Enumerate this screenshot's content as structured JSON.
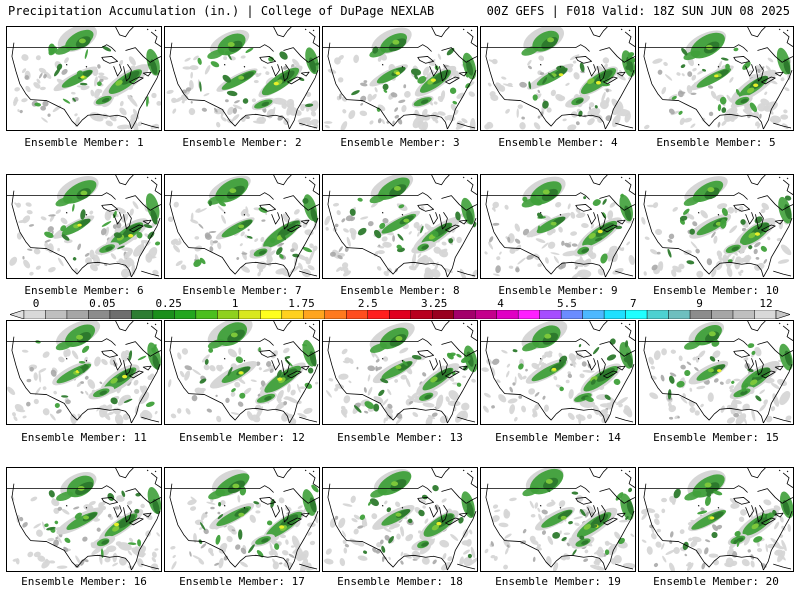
{
  "header": {
    "left_title": "Precipitation Accumulation (in.) | College of DuPage NEXLAB",
    "right_title": "00Z GEFS | F018 Valid: 18Z SUN JUN 08 2025"
  },
  "members": [
    {
      "label": "Ensemble Member: 1"
    },
    {
      "label": "Ensemble Member: 2"
    },
    {
      "label": "Ensemble Member: 3"
    },
    {
      "label": "Ensemble Member: 4"
    },
    {
      "label": "Ensemble Member: 5"
    },
    {
      "label": "Ensemble Member: 6"
    },
    {
      "label": "Ensemble Member: 7"
    },
    {
      "label": "Ensemble Member: 8"
    },
    {
      "label": "Ensemble Member: 9"
    },
    {
      "label": "Ensemble Member: 10"
    },
    {
      "label": "Ensemble Member: 11"
    },
    {
      "label": "Ensemble Member: 12"
    },
    {
      "label": "Ensemble Member: 13"
    },
    {
      "label": "Ensemble Member: 14"
    },
    {
      "label": "Ensemble Member: 15"
    },
    {
      "label": "Ensemble Member: 16"
    },
    {
      "label": "Ensemble Member: 17"
    },
    {
      "label": "Ensemble Member: 18"
    },
    {
      "label": "Ensemble Member: 19"
    },
    {
      "label": "Ensemble Member: 20"
    }
  ],
  "colorbar": {
    "labels": [
      "0",
      "0.05",
      "0.25",
      "1",
      "1.75",
      "2.5",
      "3.25",
      "4",
      "5.5",
      "7",
      "9",
      "12"
    ],
    "colors": [
      "#d9d9d9",
      "#bfbfbf",
      "#a6a6a6",
      "#8c8c8c",
      "#6e6e6e",
      "#2e7d32",
      "#1b8f1b",
      "#23a61f",
      "#4cbf1f",
      "#8fd11f",
      "#d9e81f",
      "#ffff1f",
      "#ffd11f",
      "#ffa51f",
      "#ff7a1f",
      "#ff4d1f",
      "#ff1f1f",
      "#e0001f",
      "#b8001f",
      "#99001f",
      "#a3006b",
      "#c4008c",
      "#e000c4",
      "#ff1fff",
      "#a64dff",
      "#6b8cff",
      "#4db8ff",
      "#1fe0ff",
      "#1fffff",
      "#4dd1d1",
      "#6ebfbf",
      "#8c8c8c",
      "#a6a6a6",
      "#bfbfbf",
      "#d9d9d9"
    ]
  },
  "map_colors": {
    "light_gray": "#d6d6d6",
    "mid_gray": "#a8a8a8",
    "dark_green": "#2d7a2d",
    "green": "#3fa03a",
    "light_green": "#7cc73a",
    "yellow": "#e6ef2a"
  }
}
